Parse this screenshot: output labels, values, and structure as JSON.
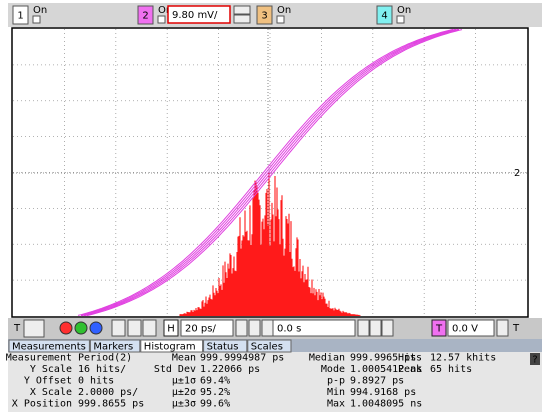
{
  "channels": [
    {
      "number": "1",
      "state": "On"
    },
    {
      "number": "2",
      "state": "On",
      "scale": "9.80 mV/"
    },
    {
      "number": "3",
      "state": "On"
    },
    {
      "number": "4",
      "state": "On"
    }
  ],
  "display": {
    "marker": "2"
  },
  "controls": {
    "trigger_label": "T",
    "horizontal_label": "H",
    "horizontal_scale": "20 ps/",
    "position": "0.0 s",
    "trigger_level_label": "T",
    "trigger_level": "0.0 V",
    "trigger_right_label": "T"
  },
  "tabs": [
    "Measurements",
    "Markers",
    "Histogram",
    "Status",
    "Scales"
  ],
  "active_tab": "Histogram",
  "help": "?",
  "measurements": {
    "rows": [
      [
        [
          "Measurement",
          "Period(2)"
        ],
        [
          "Mean",
          "999.9994987 ps"
        ],
        [
          "Median",
          "999.9965 ps"
        ],
        [
          "Hits",
          "12.57 khits"
        ]
      ],
      [
        [
          "Y Scale",
          "16 hits/"
        ],
        [
          "Std Dev",
          "1.22066 ps"
        ],
        [
          "Mode",
          "1.0005412 ns"
        ],
        [
          "Peak",
          "65 hits"
        ]
      ],
      [
        [
          "Y Offset",
          "0 hits"
        ],
        [
          "μ±1σ",
          "69.4%"
        ],
        [
          "p-p",
          "9.8927 ps"
        ]
      ],
      [
        [
          "X Scale",
          "2.0000 ps/"
        ],
        [
          "μ±2σ",
          "95.2%"
        ],
        [
          "Min",
          "994.9168 ps"
        ]
      ],
      [
        [
          "X Position",
          "999.8655 ps"
        ],
        [
          "μ±3σ",
          "99.6%"
        ],
        [
          "Max",
          "1.0048095 ns"
        ]
      ]
    ]
  }
}
